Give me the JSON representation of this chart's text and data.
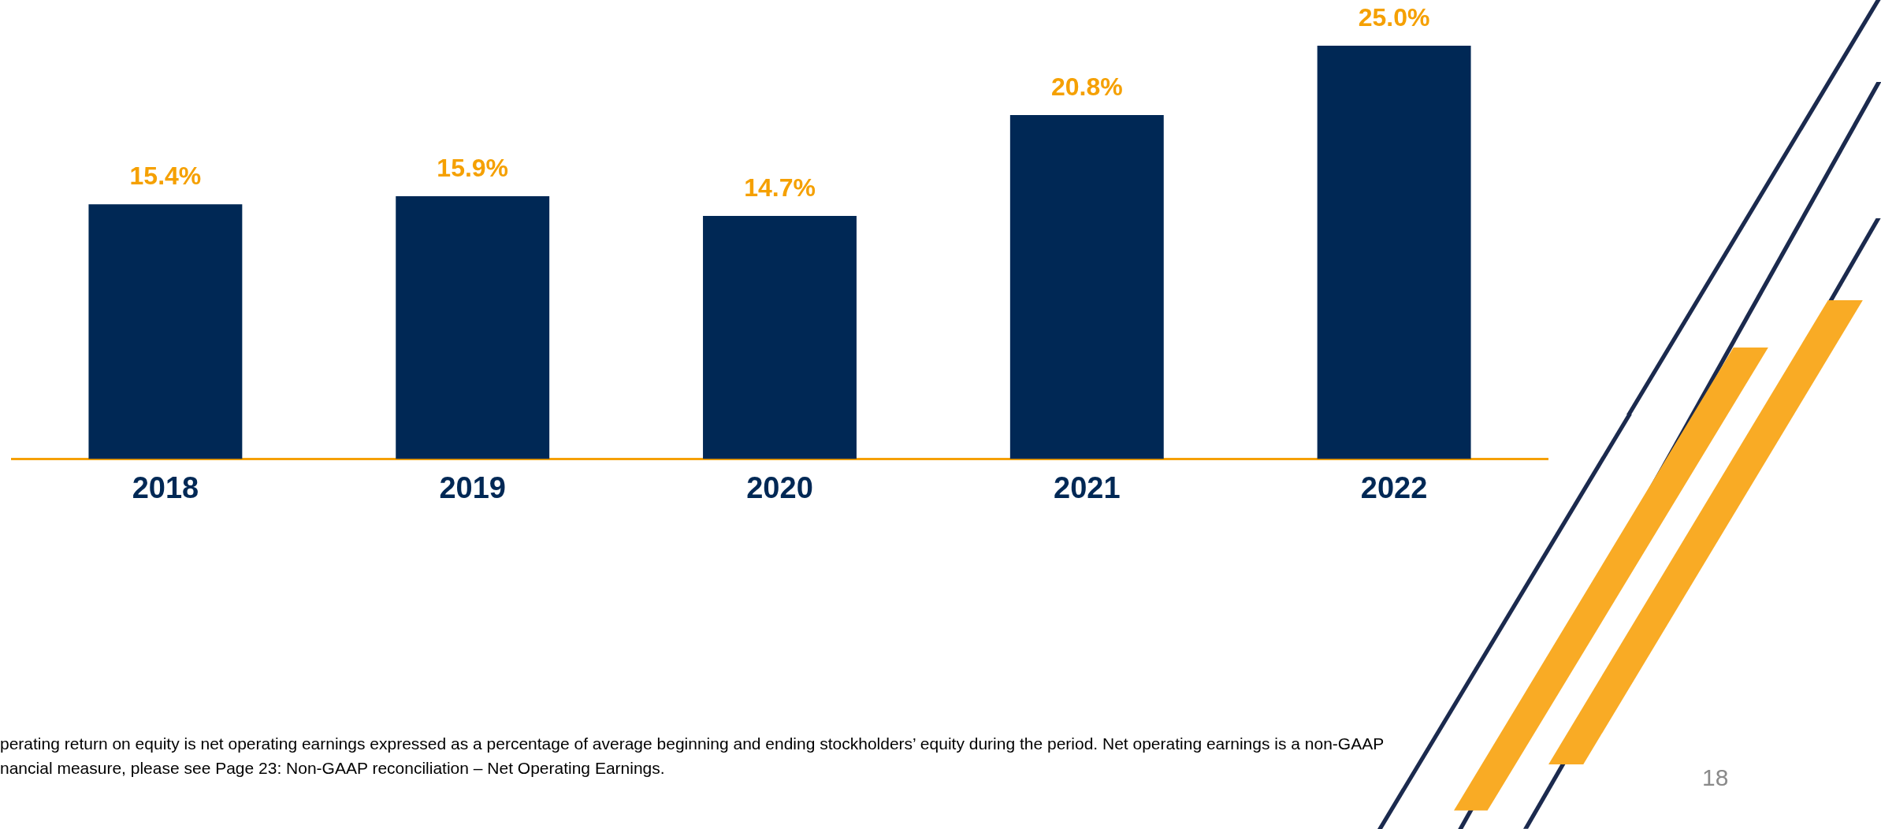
{
  "chart_data": {
    "type": "bar",
    "categories": [
      "2018",
      "2019",
      "2020",
      "2021",
      "2022"
    ],
    "values": [
      15.4,
      15.9,
      14.7,
      20.8,
      25.0
    ],
    "color": "#002855",
    "value_labels": [
      "15.4%",
      "15.9%",
      "14.7%",
      "20.8%",
      "25.0%"
    ],
    "grid": false,
    "legend": false,
    "tick_labels": "x",
    "annotations": [
      "perating return on equity is net operating earnings expressed as a percentage of average beginning and ending stockholders’ equity during the period. Net operating earnings is a non-GAAP",
      "nancial measure, please see Page 23: Non-GAAP reconciliation – Net Operating Earnings.",
      "18"
    ]
  }
}
